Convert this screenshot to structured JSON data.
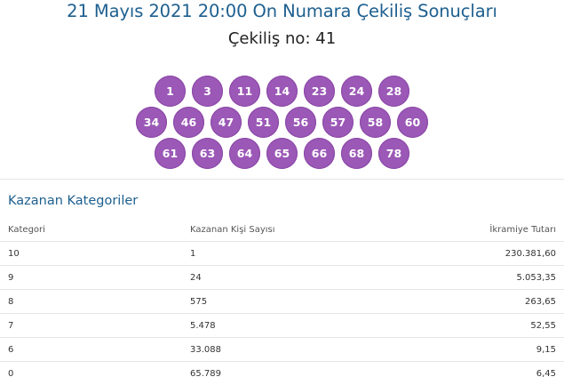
{
  "header": {
    "title": "21 Mayıs 2021 20:00 On Numara Çekiliş Sonuçları",
    "draw_number": "Çekiliş no: 41"
  },
  "numbers": {
    "row1": [
      "1",
      "3",
      "11",
      "14",
      "23",
      "24",
      "28"
    ],
    "row2": [
      "34",
      "46",
      "47",
      "51",
      "56",
      "57",
      "58",
      "60"
    ],
    "row3": [
      "61",
      "63",
      "64",
      "65",
      "66",
      "68",
      "78"
    ]
  },
  "colors": {
    "ball": "#9b58b6",
    "title": "#1d5f8f"
  },
  "winners": {
    "section_title": "Kazanan Kategoriler",
    "columns": [
      "Kategori",
      "Kazanan Kişi Sayısı",
      "İkramiye Tutarı"
    ],
    "rows": [
      [
        "10",
        "1",
        "230.381,60"
      ],
      [
        "9",
        "24",
        "5.053,35"
      ],
      [
        "8",
        "575",
        "263,65"
      ],
      [
        "7",
        "5.478",
        "52,55"
      ],
      [
        "6",
        "33.088",
        "9,15"
      ],
      [
        "0",
        "65.789",
        "6,45"
      ]
    ]
  }
}
